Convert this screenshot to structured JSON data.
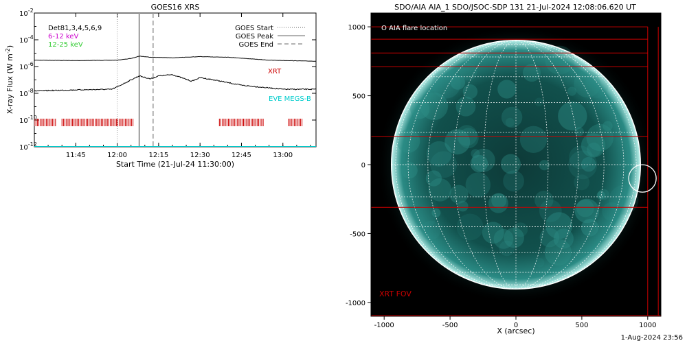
{
  "footer_timestamp": "1-Aug-2024 23:56",
  "chart_data": [
    {
      "type": "line",
      "title": "GOES16 XRS",
      "xlabel": "Start Time (21-Jul-24 11:30:00)",
      "ylabel_main": "X-ray Flux (W m",
      "ylabel_sup": "-2",
      "ylabel_end": ")",
      "y_scale": "log",
      "ylim": [
        1e-12,
        0.01
      ],
      "y_ticks": [
        {
          "base": "10",
          "exp": "-2",
          "value": 0.01
        },
        {
          "base": "10",
          "exp": "-4",
          "value": 0.0001
        },
        {
          "base": "10",
          "exp": "-6",
          "value": 1e-06
        },
        {
          "base": "10",
          "exp": "-8",
          "value": 1e-08
        },
        {
          "base": "10",
          "exp": "-10",
          "value": 1e-10
        },
        {
          "base": "10",
          "exp": "-12",
          "value": 1e-12
        }
      ],
      "xlim": [
        "11:30",
        "13:12"
      ],
      "x_ticks": [
        "11:45",
        "12:00",
        "12:15",
        "12:30",
        "12:45",
        "13:00"
      ],
      "legend_left": [
        {
          "label": "Det81,3,4,5,6,9",
          "color": "#000000"
        },
        {
          "label": "6-12 keV",
          "color": "#cc00cc"
        },
        {
          "label": "12-25 keV",
          "color": "#33cc33"
        }
      ],
      "legend_right": [
        {
          "label": "GOES Start",
          "style": "dotted"
        },
        {
          "label": "GOES Peak",
          "style": "solid"
        },
        {
          "label": "GOES End",
          "style": "dashed"
        }
      ],
      "markers": {
        "start": "12:00",
        "peak": "12:08",
        "end": "12:13"
      },
      "annotations": [
        {
          "text": "XRT",
          "color": "#cc0000"
        },
        {
          "text": "EVE MEGS-B",
          "color": "#00cccc"
        }
      ],
      "series": [
        {
          "name": "",
          "color": "#000000",
          "x": [
            "11:30",
            "11:45",
            "12:00",
            "12:05",
            "12:08",
            "12:12",
            "12:20",
            "12:30",
            "12:40",
            "12:55",
            "13:12"
          ],
          "values": [
            3e-06,
            2.8e-06,
            3e-06,
            4e-06,
            6e-06,
            5e-06,
            4.5e-06,
            5.5e-06,
            5e-06,
            3e-06,
            2.5e-06
          ]
        },
        {
          "name": "",
          "color": "#000000",
          "x": [
            "11:30",
            "11:45",
            "11:58",
            "12:00",
            "12:05",
            "12:08",
            "12:12",
            "12:15",
            "12:20",
            "12:27",
            "12:30",
            "12:35",
            "12:45",
            "13:00",
            "13:12"
          ],
          "values": [
            1.5e-08,
            1.8e-08,
            2e-08,
            3e-08,
            1e-07,
            2e-07,
            1.2e-07,
            2e-07,
            2.5e-07,
            8e-08,
            1.5e-07,
            1e-07,
            4e-08,
            2e-08,
            2e-08
          ]
        },
        {
          "name": "",
          "color": "#00cccc",
          "x": [
            "11:30",
            "13:12"
          ],
          "values": [
            1e-12,
            1e-12
          ]
        }
      ],
      "xrt_coverage": [
        [
          "11:30",
          "11:38"
        ],
        [
          "11:40",
          "12:06"
        ],
        [
          "12:37",
          "12:53"
        ],
        [
          "13:02",
          "13:07"
        ]
      ]
    },
    {
      "type": "image",
      "title": "SDO/AIA AIA_1 SDO/JSOC-SDP 131 21-Jul-2024 12:08:06.620 UT",
      "xlabel": "X (arcsec)",
      "xlim": [
        -1100,
        1100
      ],
      "ylim": [
        -1100,
        1100
      ],
      "x_ticks": [
        -1000,
        -500,
        0,
        500,
        1000
      ],
      "y_ticks": [
        1000,
        500,
        0,
        -500,
        -1000
      ],
      "solar_radius_arcsec": 945,
      "legend": "O AIA flare location",
      "flare_location": [
        960,
        -100
      ],
      "xrt_label": "XRT FOV",
      "xrt_label_color": "#cc0000",
      "xrt_fov": [
        [
          -1100,
          1000,
          1000,
          1000
        ],
        [
          -1100,
          910,
          1000,
          910
        ],
        [
          -1100,
          810,
          1000,
          810
        ],
        [
          -1100,
          710,
          1000,
          710
        ],
        [
          -1100,
          205,
          1000,
          205
        ],
        [
          -1100,
          -310,
          1000,
          -310
        ]
      ]
    }
  ]
}
